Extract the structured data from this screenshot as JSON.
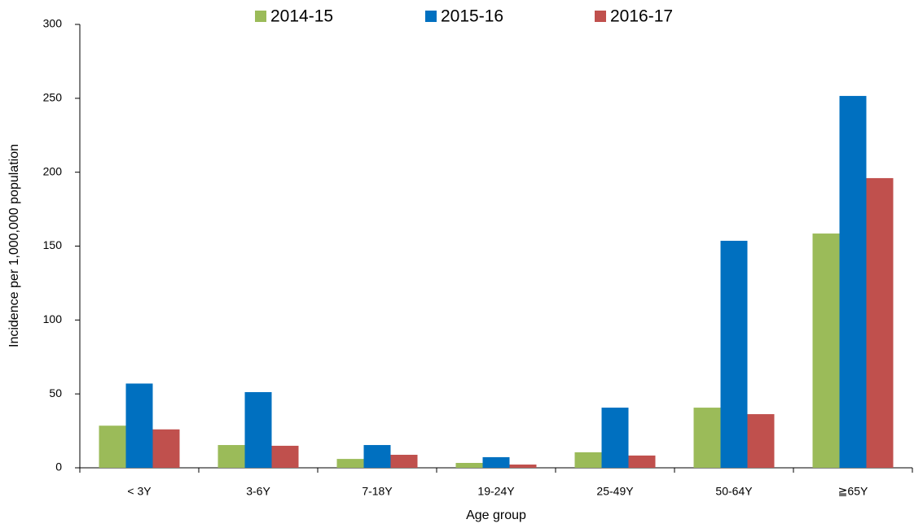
{
  "chart_data": {
    "type": "bar",
    "x_label": "Age group",
    "y_label": "Incidence per 1,000,000 population",
    "categories": [
      "< 3Y",
      "3-6Y",
      "7-18Y",
      "19-24Y",
      "25-49Y",
      "50-64Y",
      "≧65Y"
    ],
    "series": [
      {
        "name": "2014-15",
        "color": "#9bbb59",
        "values": [
          28.5,
          15.4,
          6,
          3.3,
          10.5,
          40.7,
          158.5
        ]
      },
      {
        "name": "2015-16",
        "color": "#0070c0",
        "values": [
          57,
          51.2,
          15.4,
          7.2,
          40.7,
          153.6,
          251.6
        ]
      },
      {
        "name": "2016-17",
        "color": "#c0504d",
        "values": [
          26,
          14.9,
          8.8,
          2.2,
          8.3,
          36.3,
          196
        ]
      }
    ],
    "ylim": [
      0,
      300
    ],
    "yticks": [
      0,
      50,
      100,
      150,
      200,
      250,
      300
    ],
    "grid": false,
    "legend": "top"
  }
}
